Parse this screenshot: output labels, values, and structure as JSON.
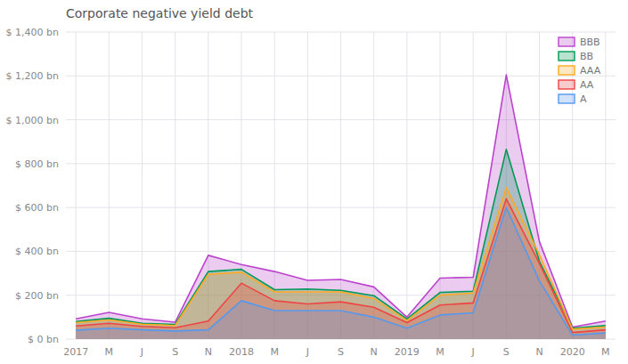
{
  "chart_data": {
    "type": "area",
    "title": "Corporate negative yield debt",
    "categories": [
      "2017",
      "M",
      "J",
      "S",
      "N",
      "2018",
      "M",
      "J",
      "S",
      "N",
      "2019",
      "M",
      "J",
      "S",
      "N",
      "2020",
      "M"
    ],
    "series": [
      {
        "name": "BBB",
        "color": "#bb44cc",
        "values": [
          92,
          122,
          92,
          77,
          382,
          340,
          308,
          268,
          272,
          238,
          100,
          278,
          282,
          1205,
          445,
          55,
          82
        ]
      },
      {
        "name": "BB",
        "color": "#009955",
        "values": [
          80,
          95,
          72,
          67,
          308,
          318,
          225,
          228,
          222,
          198,
          92,
          213,
          218,
          865,
          355,
          50,
          62
        ]
      },
      {
        "name": "AAA",
        "color": "#ffaa22",
        "values": [
          75,
          87,
          68,
          62,
          295,
          305,
          215,
          215,
          215,
          185,
          85,
          200,
          210,
          690,
          385,
          45,
          55
        ]
      },
      {
        "name": "AA",
        "color": "#ee4444",
        "values": [
          60,
          72,
          58,
          52,
          82,
          255,
          175,
          160,
          170,
          145,
          75,
          155,
          165,
          640,
          345,
          30,
          42
        ]
      },
      {
        "name": "A",
        "color": "#5599ee",
        "values": [
          40,
          50,
          42,
          37,
          42,
          175,
          130,
          130,
          130,
          100,
          50,
          110,
          120,
          600,
          265,
          18,
          28
        ]
      }
    ],
    "ylim": [
      0,
      1400
    ],
    "yticks": [
      {
        "value": 0,
        "label": "$ 0 bn"
      },
      {
        "value": 200,
        "label": "$ 200 bn"
      },
      {
        "value": 400,
        "label": "$ 400 bn"
      },
      {
        "value": 600,
        "label": "$ 600 bn"
      },
      {
        "value": 800,
        "label": "$ 800 bn"
      },
      {
        "value": 1000,
        "label": "$ 1,000 bn"
      },
      {
        "value": 1200,
        "label": "$ 1,200 bn"
      },
      {
        "value": 1400,
        "label": "$ 1,400 bn"
      }
    ],
    "grid": true,
    "legend": "top-right"
  }
}
